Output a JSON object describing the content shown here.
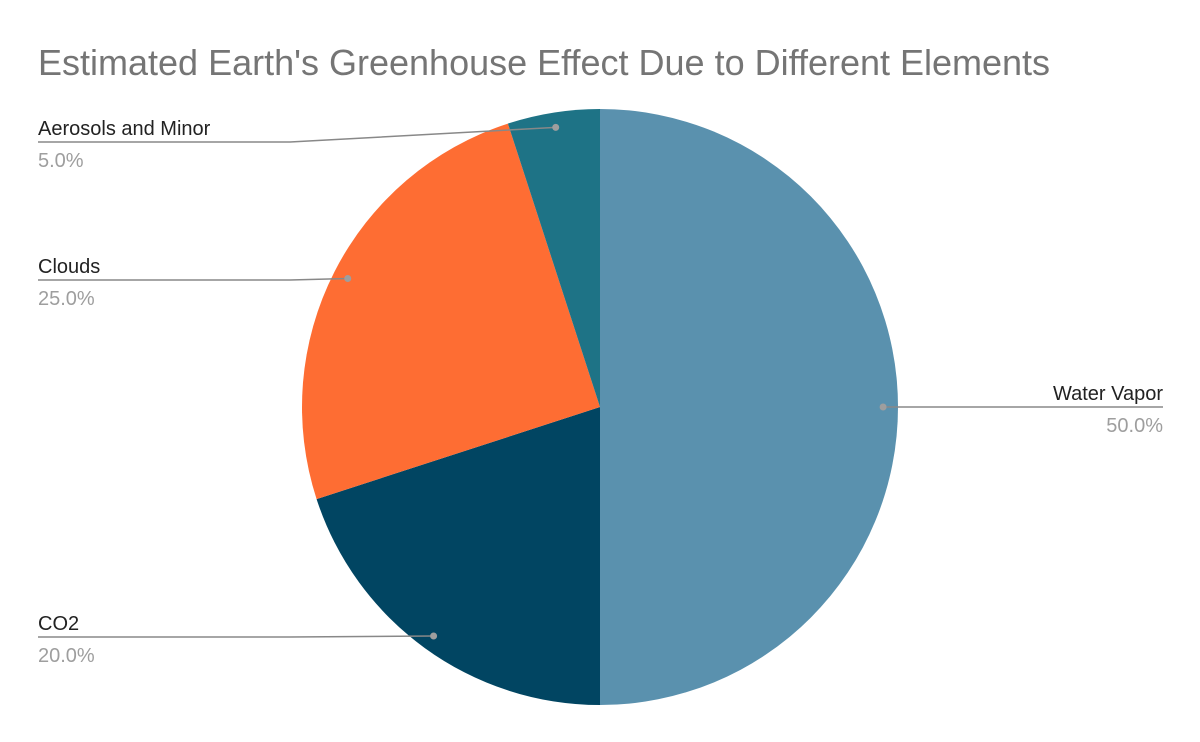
{
  "chart_data": {
    "type": "pie",
    "title": "Estimated Earth's Greenhouse Effect Due to Different Elements",
    "slices": [
      {
        "name": "Water Vapor",
        "value": 50.0,
        "label": "50.0%",
        "color": "#5a91ae"
      },
      {
        "name": "CO2",
        "value": 20.0,
        "label": "20.0%",
        "color": "#014562"
      },
      {
        "name": "Clouds",
        "value": 25.0,
        "label": "25.0%",
        "color": "#fe6d33"
      },
      {
        "name": "Aerosols and Minor",
        "value": 5.0,
        "label": "5.0%",
        "color": "#1e7386"
      }
    ],
    "legend": "none",
    "labels": "outside-with-leader-lines"
  }
}
